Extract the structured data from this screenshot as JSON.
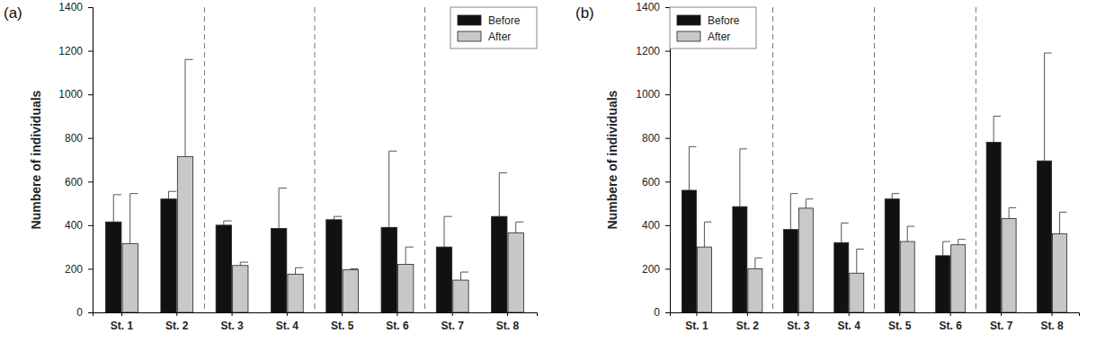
{
  "chart_data": [
    {
      "type": "bar",
      "title": "(a)",
      "y_label": "Numbere of individuals",
      "categories": [
        "St. 1",
        "St. 2",
        "St. 3",
        "St. 4",
        "St. 5",
        "St. 6",
        "St. 7",
        "St. 8"
      ],
      "series": [
        {
          "name": "Before",
          "color": "#111111",
          "values": [
            415,
            520,
            400,
            385,
            425,
            390,
            300,
            440
          ],
          "errors": [
            125,
            35,
            20,
            185,
            15,
            350,
            140,
            200
          ]
        },
        {
          "name": "After",
          "color": "#c8c8c8",
          "values": [
            315,
            715,
            215,
            175,
            195,
            220,
            148,
            365
          ],
          "errors": [
            230,
            445,
            15,
            30,
            5,
            80,
            37,
            50
          ]
        }
      ],
      "ylim": [
        0,
        1400
      ],
      "yticks": [
        0,
        200,
        400,
        600,
        800,
        1000,
        1200,
        1400
      ],
      "legend": "upper right"
    },
    {
      "type": "bar",
      "title": "(b)",
      "y_label": "Numbere of individuals",
      "categories": [
        "St. 1",
        "St. 2",
        "St. 3",
        "St. 4",
        "St. 5",
        "St. 6",
        "St. 7",
        "St. 8"
      ],
      "series": [
        {
          "name": "Before",
          "color": "#111111",
          "values": [
            560,
            485,
            380,
            320,
            520,
            260,
            780,
            695
          ],
          "errors": [
            200,
            265,
            165,
            90,
            25,
            65,
            120,
            495
          ]
        },
        {
          "name": "After",
          "color": "#c8c8c8",
          "values": [
            300,
            200,
            478,
            180,
            325,
            310,
            430,
            360
          ],
          "errors": [
            115,
            50,
            42,
            110,
            70,
            25,
            50,
            100
          ]
        }
      ],
      "ylim": [
        0,
        1400
      ],
      "yticks": [
        0,
        200,
        400,
        600,
        800,
        1000,
        1200,
        1400
      ],
      "legend": "upper left"
    }
  ]
}
